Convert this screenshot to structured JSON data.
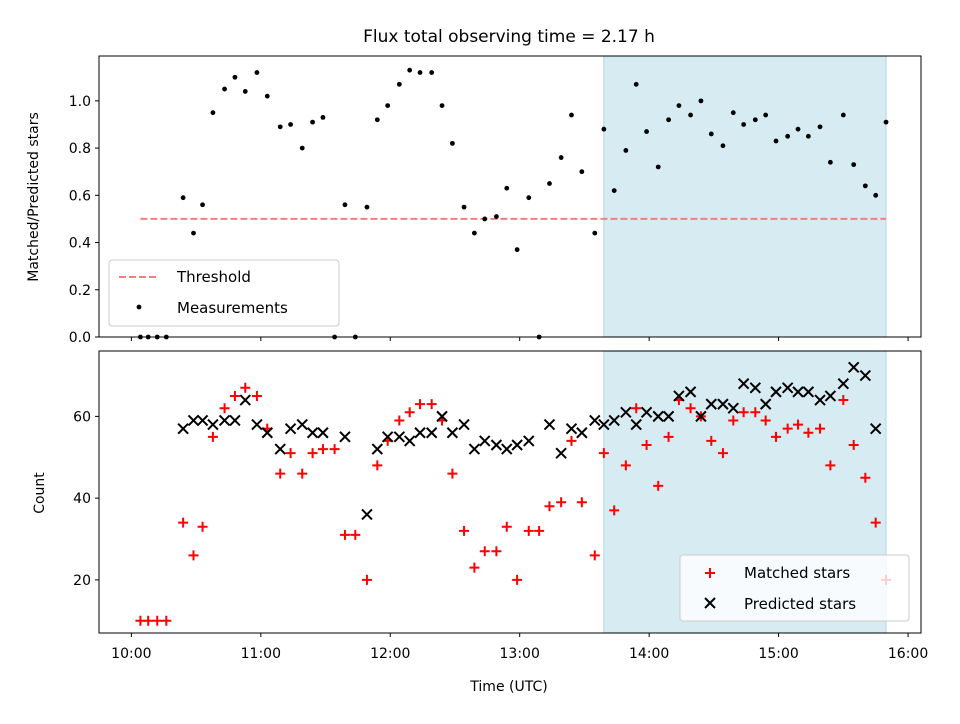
{
  "chart_data": [
    {
      "type": "scatter",
      "title": "Flux total observing time = 2.17 h",
      "xlabel": "",
      "ylabel": "Matched/Predicted stars",
      "xlim": [
        9.75,
        16.1
      ],
      "ylim": [
        0,
        1.19
      ],
      "yticks": [
        0.0,
        0.2,
        0.4,
        0.6,
        0.8,
        1.0
      ],
      "ytick_labels": [
        "0.0",
        "0.2",
        "0.4",
        "0.6",
        "0.8",
        "1.0"
      ],
      "xticks": [
        10,
        11,
        12,
        13,
        14,
        15,
        16
      ],
      "highlight_span": [
        13.65,
        15.83
      ],
      "threshold": {
        "name": "Threshold",
        "value": 0.5,
        "x_range": [
          10.07,
          15.83
        ],
        "color": "#f08080"
      },
      "legend": {
        "position": "lower-left",
        "entries": [
          "Threshold",
          "Measurements"
        ]
      },
      "series": [
        {
          "name": "Measurements",
          "color": "#000000",
          "points": [
            [
              10.07,
              0.0
            ],
            [
              10.13,
              0.0
            ],
            [
              10.2,
              0.0
            ],
            [
              10.27,
              0.0
            ],
            [
              10.4,
              0.59
            ],
            [
              10.48,
              0.44
            ],
            [
              10.55,
              0.56
            ],
            [
              10.63,
              0.95
            ],
            [
              10.72,
              1.05
            ],
            [
              10.8,
              1.1
            ],
            [
              10.88,
              1.04
            ],
            [
              10.97,
              1.12
            ],
            [
              11.05,
              1.02
            ],
            [
              11.15,
              0.89
            ],
            [
              11.23,
              0.9
            ],
            [
              11.32,
              0.8
            ],
            [
              11.4,
              0.91
            ],
            [
              11.48,
              0.93
            ],
            [
              11.57,
              0.0
            ],
            [
              11.65,
              0.56
            ],
            [
              11.73,
              0.0
            ],
            [
              11.82,
              0.55
            ],
            [
              11.9,
              0.92
            ],
            [
              11.98,
              0.98
            ],
            [
              12.07,
              1.07
            ],
            [
              12.15,
              1.13
            ],
            [
              12.23,
              1.12
            ],
            [
              12.32,
              1.12
            ],
            [
              12.4,
              0.98
            ],
            [
              12.48,
              0.82
            ],
            [
              12.57,
              0.55
            ],
            [
              12.65,
              0.44
            ],
            [
              12.73,
              0.5
            ],
            [
              12.82,
              0.51
            ],
            [
              12.9,
              0.63
            ],
            [
              12.98,
              0.37
            ],
            [
              13.07,
              0.59
            ],
            [
              13.15,
              0.0
            ],
            [
              13.23,
              0.65
            ],
            [
              13.32,
              0.76
            ],
            [
              13.4,
              0.94
            ],
            [
              13.48,
              0.7
            ],
            [
              13.58,
              0.44
            ],
            [
              13.65,
              0.88
            ],
            [
              13.73,
              0.62
            ],
            [
              13.82,
              0.79
            ],
            [
              13.9,
              1.07
            ],
            [
              13.98,
              0.87
            ],
            [
              14.07,
              0.72
            ],
            [
              14.15,
              0.92
            ],
            [
              14.23,
              0.98
            ],
            [
              14.32,
              0.94
            ],
            [
              14.4,
              1.0
            ],
            [
              14.48,
              0.86
            ],
            [
              14.57,
              0.81
            ],
            [
              14.65,
              0.95
            ],
            [
              14.73,
              0.9
            ],
            [
              14.82,
              0.92
            ],
            [
              14.9,
              0.94
            ],
            [
              14.98,
              0.83
            ],
            [
              15.07,
              0.85
            ],
            [
              15.15,
              0.88
            ],
            [
              15.23,
              0.85
            ],
            [
              15.32,
              0.89
            ],
            [
              15.4,
              0.74
            ],
            [
              15.5,
              0.94
            ],
            [
              15.58,
              0.73
            ],
            [
              15.67,
              0.64
            ],
            [
              15.75,
              0.6
            ],
            [
              15.83,
              0.91
            ]
          ]
        }
      ]
    },
    {
      "type": "scatter",
      "title": "",
      "xlabel": "Time (UTC)",
      "ylabel": "Count",
      "xlim": [
        9.75,
        16.1
      ],
      "ylim": [
        7,
        76
      ],
      "yticks": [
        20,
        40,
        60
      ],
      "ytick_labels": [
        "20",
        "40",
        "60"
      ],
      "xticks": [
        10,
        11,
        12,
        13,
        14,
        15,
        16
      ],
      "xtick_labels": [
        "10:00",
        "11:00",
        "12:00",
        "13:00",
        "14:00",
        "15:00",
        "16:00"
      ],
      "highlight_span": [
        13.65,
        15.83
      ],
      "legend": {
        "position": "lower-right",
        "entries": [
          "Matched stars",
          "Predicted stars"
        ]
      },
      "series": [
        {
          "name": "Matched stars",
          "marker": "plus",
          "color": "#ff0000",
          "points": [
            [
              10.07,
              10
            ],
            [
              10.13,
              10
            ],
            [
              10.2,
              10
            ],
            [
              10.27,
              10
            ],
            [
              10.4,
              34
            ],
            [
              10.48,
              26
            ],
            [
              10.55,
              33
            ],
            [
              10.63,
              55
            ],
            [
              10.72,
              62
            ],
            [
              10.8,
              65
            ],
            [
              10.88,
              67
            ],
            [
              10.97,
              65
            ],
            [
              11.05,
              57
            ],
            [
              11.15,
              46
            ],
            [
              11.23,
              51
            ],
            [
              11.32,
              46
            ],
            [
              11.4,
              51
            ],
            [
              11.48,
              52
            ],
            [
              11.57,
              52
            ],
            [
              11.65,
              31
            ],
            [
              11.73,
              31
            ],
            [
              11.82,
              20
            ],
            [
              11.9,
              48
            ],
            [
              11.98,
              54
            ],
            [
              12.07,
              59
            ],
            [
              12.15,
              61
            ],
            [
              12.23,
              63
            ],
            [
              12.32,
              63
            ],
            [
              12.4,
              59
            ],
            [
              12.48,
              46
            ],
            [
              12.57,
              32
            ],
            [
              12.65,
              23
            ],
            [
              12.73,
              27
            ],
            [
              12.82,
              27
            ],
            [
              12.9,
              33
            ],
            [
              12.98,
              20
            ],
            [
              13.07,
              32
            ],
            [
              13.15,
              32
            ],
            [
              13.23,
              38
            ],
            [
              13.32,
              39
            ],
            [
              13.4,
              54
            ],
            [
              13.48,
              39
            ],
            [
              13.58,
              26
            ],
            [
              13.65,
              51
            ],
            [
              13.73,
              37
            ],
            [
              13.82,
              48
            ],
            [
              13.9,
              62
            ],
            [
              13.98,
              53
            ],
            [
              14.07,
              43
            ],
            [
              14.15,
              55
            ],
            [
              14.23,
              64
            ],
            [
              14.32,
              62
            ],
            [
              14.4,
              60
            ],
            [
              14.48,
              54
            ],
            [
              14.57,
              51
            ],
            [
              14.65,
              59
            ],
            [
              14.73,
              61
            ],
            [
              14.82,
              61
            ],
            [
              14.9,
              59
            ],
            [
              14.98,
              55
            ],
            [
              15.07,
              57
            ],
            [
              15.15,
              58
            ],
            [
              15.23,
              56
            ],
            [
              15.32,
              57
            ],
            [
              15.4,
              48
            ],
            [
              15.5,
              64
            ],
            [
              15.58,
              53
            ],
            [
              15.67,
              45
            ],
            [
              15.75,
              34
            ],
            [
              15.83,
              20
            ]
          ]
        },
        {
          "name": "Predicted stars",
          "marker": "x",
          "color": "#000000",
          "points": [
            [
              10.4,
              57
            ],
            [
              10.48,
              59
            ],
            [
              10.55,
              59
            ],
            [
              10.63,
              58
            ],
            [
              10.72,
              59
            ],
            [
              10.8,
              59
            ],
            [
              10.88,
              64
            ],
            [
              10.97,
              58
            ],
            [
              11.05,
              56
            ],
            [
              11.15,
              52
            ],
            [
              11.23,
              57
            ],
            [
              11.32,
              58
            ],
            [
              11.4,
              56
            ],
            [
              11.48,
              56
            ],
            [
              11.65,
              55
            ],
            [
              11.82,
              36
            ],
            [
              11.9,
              52
            ],
            [
              11.98,
              55
            ],
            [
              12.07,
              55
            ],
            [
              12.15,
              54
            ],
            [
              12.23,
              56
            ],
            [
              12.32,
              56
            ],
            [
              12.4,
              60
            ],
            [
              12.48,
              56
            ],
            [
              12.57,
              58
            ],
            [
              12.65,
              52
            ],
            [
              12.73,
              54
            ],
            [
              12.82,
              53
            ],
            [
              12.9,
              52
            ],
            [
              12.98,
              53
            ],
            [
              13.07,
              54
            ],
            [
              13.23,
              58
            ],
            [
              13.32,
              51
            ],
            [
              13.4,
              57
            ],
            [
              13.48,
              56
            ],
            [
              13.58,
              59
            ],
            [
              13.65,
              58
            ],
            [
              13.73,
              59
            ],
            [
              13.82,
              61
            ],
            [
              13.9,
              58
            ],
            [
              13.98,
              61
            ],
            [
              14.07,
              60
            ],
            [
              14.15,
              60
            ],
            [
              14.23,
              65
            ],
            [
              14.32,
              66
            ],
            [
              14.4,
              60
            ],
            [
              14.48,
              63
            ],
            [
              14.57,
              63
            ],
            [
              14.65,
              62
            ],
            [
              14.73,
              68
            ],
            [
              14.82,
              67
            ],
            [
              14.9,
              63
            ],
            [
              14.98,
              66
            ],
            [
              15.07,
              67
            ],
            [
              15.15,
              66
            ],
            [
              15.23,
              66
            ],
            [
              15.32,
              64
            ],
            [
              15.4,
              65
            ],
            [
              15.5,
              68
            ],
            [
              15.58,
              72
            ],
            [
              15.67,
              70
            ],
            [
              15.75,
              57
            ]
          ]
        }
      ]
    }
  ]
}
